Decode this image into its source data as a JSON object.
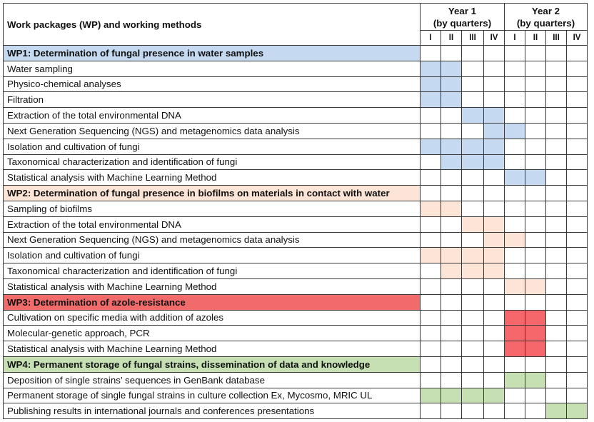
{
  "header": {
    "title": "Work packages (WP) and working methods",
    "years": [
      {
        "label": "Year 1",
        "sub": "(by quarters)"
      },
      {
        "label": "Year 2",
        "sub": "(by quarters)"
      }
    ],
    "quarters": [
      "I",
      "II",
      "III",
      "IV",
      "I",
      "II",
      "III",
      "IV"
    ]
  },
  "colors": {
    "wp1": "#c5d9f1",
    "wp1_header": "#c5d9f1",
    "wp2": "#fce4d6",
    "wp2_header": "#fce4d6",
    "wp3": "#f5676b",
    "wp3_header": "#f26b6b",
    "wp4": "#c6e0b4",
    "wp4_header": "#c6e0b4"
  },
  "work_packages": [
    {
      "key": "wp1",
      "title": "WP1: Determination of fungal presence in water samples",
      "header_quarters": [],
      "tasks": [
        {
          "label": "Water sampling",
          "quarters": [
            1,
            2
          ]
        },
        {
          "label": "Physico-chemical analyses",
          "quarters": [
            1,
            2
          ]
        },
        {
          "label": "Filtration",
          "quarters": [
            1,
            2
          ]
        },
        {
          "label": "Extraction of the total environmental DNA",
          "quarters": [
            3,
            4
          ]
        },
        {
          "label": "Next Generation Sequencing (NGS) and metagenomics data analysis",
          "quarters": [
            4,
            5
          ]
        },
        {
          "label": "Isolation and cultivation of fungi",
          "quarters": [
            1,
            2,
            3,
            4
          ]
        },
        {
          "label": "Taxonomical characterization and identification of fungi",
          "quarters": [
            2,
            3,
            4
          ]
        },
        {
          "label": "Statistical analysis with Machine Learning Method",
          "quarters": [
            5,
            6
          ]
        }
      ]
    },
    {
      "key": "wp2",
      "title": "WP2: Determination of fungal presence in biofilms on materials in contact with water",
      "header_quarters": [],
      "tasks": [
        {
          "label": "Sampling of biofilms",
          "quarters": [
            1,
            2
          ]
        },
        {
          "label": "Extraction of the total environmental DNA",
          "quarters": [
            3,
            4
          ]
        },
        {
          "label": "Next Generation Sequencing (NGS) and metagenomics data analysis",
          "quarters": [
            4,
            5
          ]
        },
        {
          "label": "Isolation and cultivation of fungi",
          "quarters": [
            1,
            2,
            3,
            4
          ]
        },
        {
          "label": "Taxonomical characterization and identification of fungi",
          "quarters": [
            2,
            3,
            4
          ]
        },
        {
          "label": "Statistical analysis with Machine Learning Method",
          "quarters": [
            5,
            6
          ]
        }
      ]
    },
    {
      "key": "wp3",
      "title": "WP3: Determination of azole-resistance",
      "header_quarters": [],
      "tasks": [
        {
          "label": "Cultivation on specific media with addition of azoles",
          "quarters": [
            5,
            6
          ]
        },
        {
          "label": "Molecular-genetic approach, PCR",
          "quarters": [
            5,
            6
          ]
        },
        {
          "label": "Statistical analysis with Machine Learning Method",
          "quarters": [
            5,
            6
          ]
        }
      ]
    },
    {
      "key": "wp4",
      "title": "WP4: Permanent storage of fungal strains, dissemination of data and knowledge",
      "header_quarters": [],
      "tasks": [
        {
          "label": "Deposition of single strains’ sequences in GenBank database",
          "quarters": [
            5,
            6
          ]
        },
        {
          "label": "Permanent storage of single fungal strains in culture collection Ex, Mycosmo, MRIC UL",
          "quarters": [
            1,
            2,
            3,
            4
          ]
        },
        {
          "label": "Publishing results in international journals and conferences presentations",
          "quarters": [
            7,
            8
          ]
        }
      ]
    }
  ]
}
